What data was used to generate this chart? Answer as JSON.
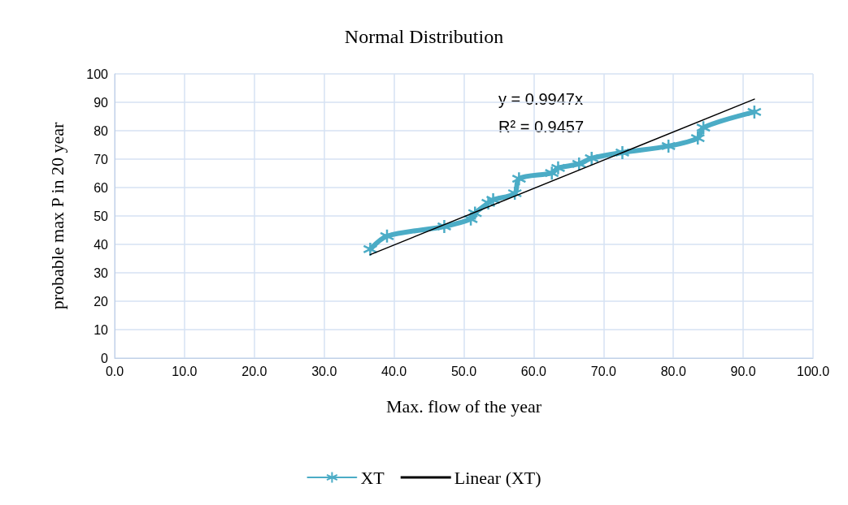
{
  "chart_data": {
    "type": "line",
    "title": "Normal Distribution",
    "xlabel": "Max. flow of the year",
    "ylabel": "probable max P in 20 year",
    "xlim": [
      0,
      100
    ],
    "ylim": [
      0,
      100
    ],
    "xticks": [
      {
        "value": 0,
        "label": "0.0"
      },
      {
        "value": 10,
        "label": "10.0"
      },
      {
        "value": 20,
        "label": "20.0"
      },
      {
        "value": 30,
        "label": "30.0"
      },
      {
        "value": 40,
        "label": "40.0"
      },
      {
        "value": 50,
        "label": "50.0"
      },
      {
        "value": 60,
        "label": "60.0"
      },
      {
        "value": 70,
        "label": "70.0"
      },
      {
        "value": 80,
        "label": "80.0"
      },
      {
        "value": 90,
        "label": "90.0"
      },
      {
        "value": 100,
        "label": "100.0"
      }
    ],
    "yticks": [
      0,
      10,
      20,
      30,
      40,
      50,
      60,
      70,
      80,
      90,
      100
    ],
    "grid": true,
    "legend": "bottom",
    "annotations": [
      "y = 0.9947x",
      "R² = 0.9457"
    ],
    "series": [
      {
        "name": "XT",
        "color": "#4bacc6",
        "marker": "cross",
        "line_style": "solid",
        "x": [
          36.6,
          39.0,
          47.2,
          51.0,
          51.6,
          53.5,
          54.2,
          57.3,
          57.9,
          62.6,
          63.5,
          66.5,
          68.3,
          72.7,
          79.3,
          83.5,
          84.3,
          91.6
        ],
        "values": [
          38.3,
          42.9,
          46.3,
          48.9,
          51.0,
          54.6,
          55.7,
          58.0,
          63.1,
          65.1,
          66.9,
          68.3,
          70.3,
          72.3,
          74.6,
          77.4,
          81.1,
          86.6
        ]
      },
      {
        "name": "Linear (XT)",
        "color": "#000000",
        "marker": "none",
        "line_style": "solid",
        "x": [
          36.6,
          91.6
        ],
        "values": [
          36.4,
          91.1
        ]
      }
    ]
  }
}
